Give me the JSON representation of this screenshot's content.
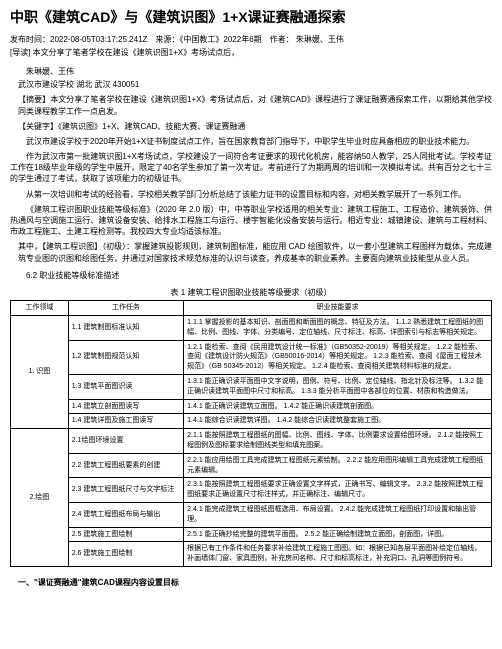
{
  "title": "中职《建筑CAD》与《建筑识图》1+X课证赛融通探索",
  "meta": "发布时间：2022-08-05T03:17:25.241Z　来源：《中国教工》2022年6期　作者： 朱琳媛、王伟",
  "lead": "[导读] 本文分享了笔者学校在建设《建筑识图1+X》考场试点后，",
  "authors": "朱琳媛、王伟",
  "affiliation": "武汉市建设学校 湖北 武汉 430051",
  "abstract": "【摘要】本文分享了笔者学校在建设《建筑识图1+X》考场试点后，对《建筑CAD》课程进行了课证融赛通探索工作，以期给其他学校同类课程教学工作一点启发。",
  "keywords": "【关键字】《建筑识图》1+X、建筑CAD、技能大赛、课证赛融通",
  "p1": "武汉市建设学校于2020年开始1+X证书制度试点工作，旨在国家教育部门指导下，中职学生毕业时应具备相应的职业技术能力。",
  "p2": "作为武汉市第一批建筑识图1+X考场试点，学校建设了一间符合考证要求的现代化机房，能容纳50人教学，25人同批考试。学校考证工作在18级毕业年级的学生中展开，限定了40名学生参加了第一次考证。考前进行了为期两周的培训和一次模拟考试。共有百分之七十三的学生通过了考试，获取了该项能力的初级证书。",
  "p3": "从第一次培训和考试的经验看，学校相关教学部门分析总结了该能力证书的设置目标和内容，对相关教学展开了一系列工作。",
  "p4": "《建筑工程识图职业技能等级标准》（2020 年 2.0 版）中，中等职业学校适用的相关专业：建筑工程施工、工程造价、建筑装饰、供热通风与空调施工运行、建筑设备安装、给排水工程施工与运行、楼宇智能化设备安装与运行。相近专业：城镇建设、建筑与工程材料、市政工程施工、土建工程检测等。我校四大专业均适该标准。",
  "p5": "其中，【建筑工程识图】（初级）：掌握建筑投影规则，建筑制图标准，能应用 CAD 绘图软件，以一套小型建筑工程图样为载体，完成建筑专业图的识图和绘图任务，并通过对国家技术规范标准的认识与读查，养成基本的职业素养。主要面向建筑业技能型从业人员。",
  "section62": "6.2 职业技能等级标准描述",
  "table1_caption": "表 1 建筑工程识图职业技能等级要求（初级）",
  "th1": "工作领域",
  "th2": "工作任务",
  "th3": "职业技能要求",
  "t1_r1_c1": "1. 识图",
  "t1_r1_c2": "1.1 建筑制图标准认知",
  "t1_r1_c3": "1.1.1 掌握投影的基本知识、剖面图和断面图的概念、特征及方法。\n1.1.2 熟悉建筑工程图纸的图幅、比例、图线、字体、分类编号、定位轴线、尺寸标注、标高、详图索引与标志等相关规定。",
  "t1_r2_c2": "1.2 建筑制图规范认知",
  "t1_r2_c3": "1.2.1 能检索、查阅《民用建筑设计统一标准》（GB50352-20019）等相关规定。\n1.2.2 能检索、查阅《建筑设计防火规范》（GB50016-2014）等相关规定。\n1.2.3 能检索、查阅《屋面工程技术规范》（GB 50345-2012）等相关规定。\n1.2.4 能检索、查阅相关建筑材料标准的规定。",
  "t1_r3_c2": "1.3 建筑平面图识读",
  "t1_r3_c3": "1.3.1 能正确识读平面图中文字说明，图例、符号、比例、定位轴线、指北针及标注等。\n1.3.2 能正确识读建筑平面图中尺寸和标高。\n1.3.3 能分析平面图中各部位的位置、材质和构造做法。",
  "t1_r4_c2": "1.4 建筑立剖面图读写",
  "t1_r4_c3": "1.4.1 能正确识读建筑立面图。\n1.4.2 能正确识读建筑剖面图。",
  "t1_r5_c2": "1.4 建筑详图及施工图读写",
  "t1_r5_c3": "1.4.1 能综合识读建筑详图。\n1.4.2 能综合识读建筑整套施工图。",
  "t1_r6_c1": "2.绘图",
  "t1_r6_c2": "2.1绘图环境设置",
  "t1_r6_c3": "2.1.1 能按照建筑工程图纸的图幅、比例、图线、字体、比例要求设置绘图环境。\n2.1.2 能按照工程图例及图标要求绘制图线类型和填充图案。",
  "t1_r7_c2": "2.2 建筑工程图纸要素的创建",
  "t1_r7_c3": "2.2.1 能应用绘图工具完成建筑工程图纸元素绘制。\n2.2.2 能应用图形编辑工具完成建筑工程图纸元素编辑。",
  "t1_r8_c2": "2.3 建筑工程图纸尺寸与文字标注",
  "t1_r8_c3": "2.3.1 能按照建筑工程图纸要求正确设置文字样式，正确书写、编辑文字。\n2.3.2 能按照建筑工程图纸要求正确设置尺寸标注样式，并正确标注、编辑尺寸。",
  "t1_r9_c2": "2.4 建筑工程图纸布局与输出",
  "t1_r9_c3": "2.4.1 能完成建筑工程图纸图框选用、布局设置。\n2.4.2 能完成建筑工程图纸打印设置和输出管理。",
  "t1_r10_c2": "2.5 建筑施工图绘制",
  "t1_r10_c3": "2.5.1 能正确抄绘完整的建筑平面图。\n2.5.2 能正确绘制建筑立面图，剖面图，详图。",
  "t1_r11_c2": "2.6 建筑施工图绘制",
  "t1_r11_c3": "根据已有工作条件和任务要求补绘建筑工程施工图图。如：根据已知各层平面图补绘定位轴线，补画墙体门窗、家具图例，补充房间名称、尺寸和标高标注，补充洞口、孔洞等图例符号。",
  "heading1": "一、\"课证赛融通\"建筑CAD课程内容设置目标"
}
